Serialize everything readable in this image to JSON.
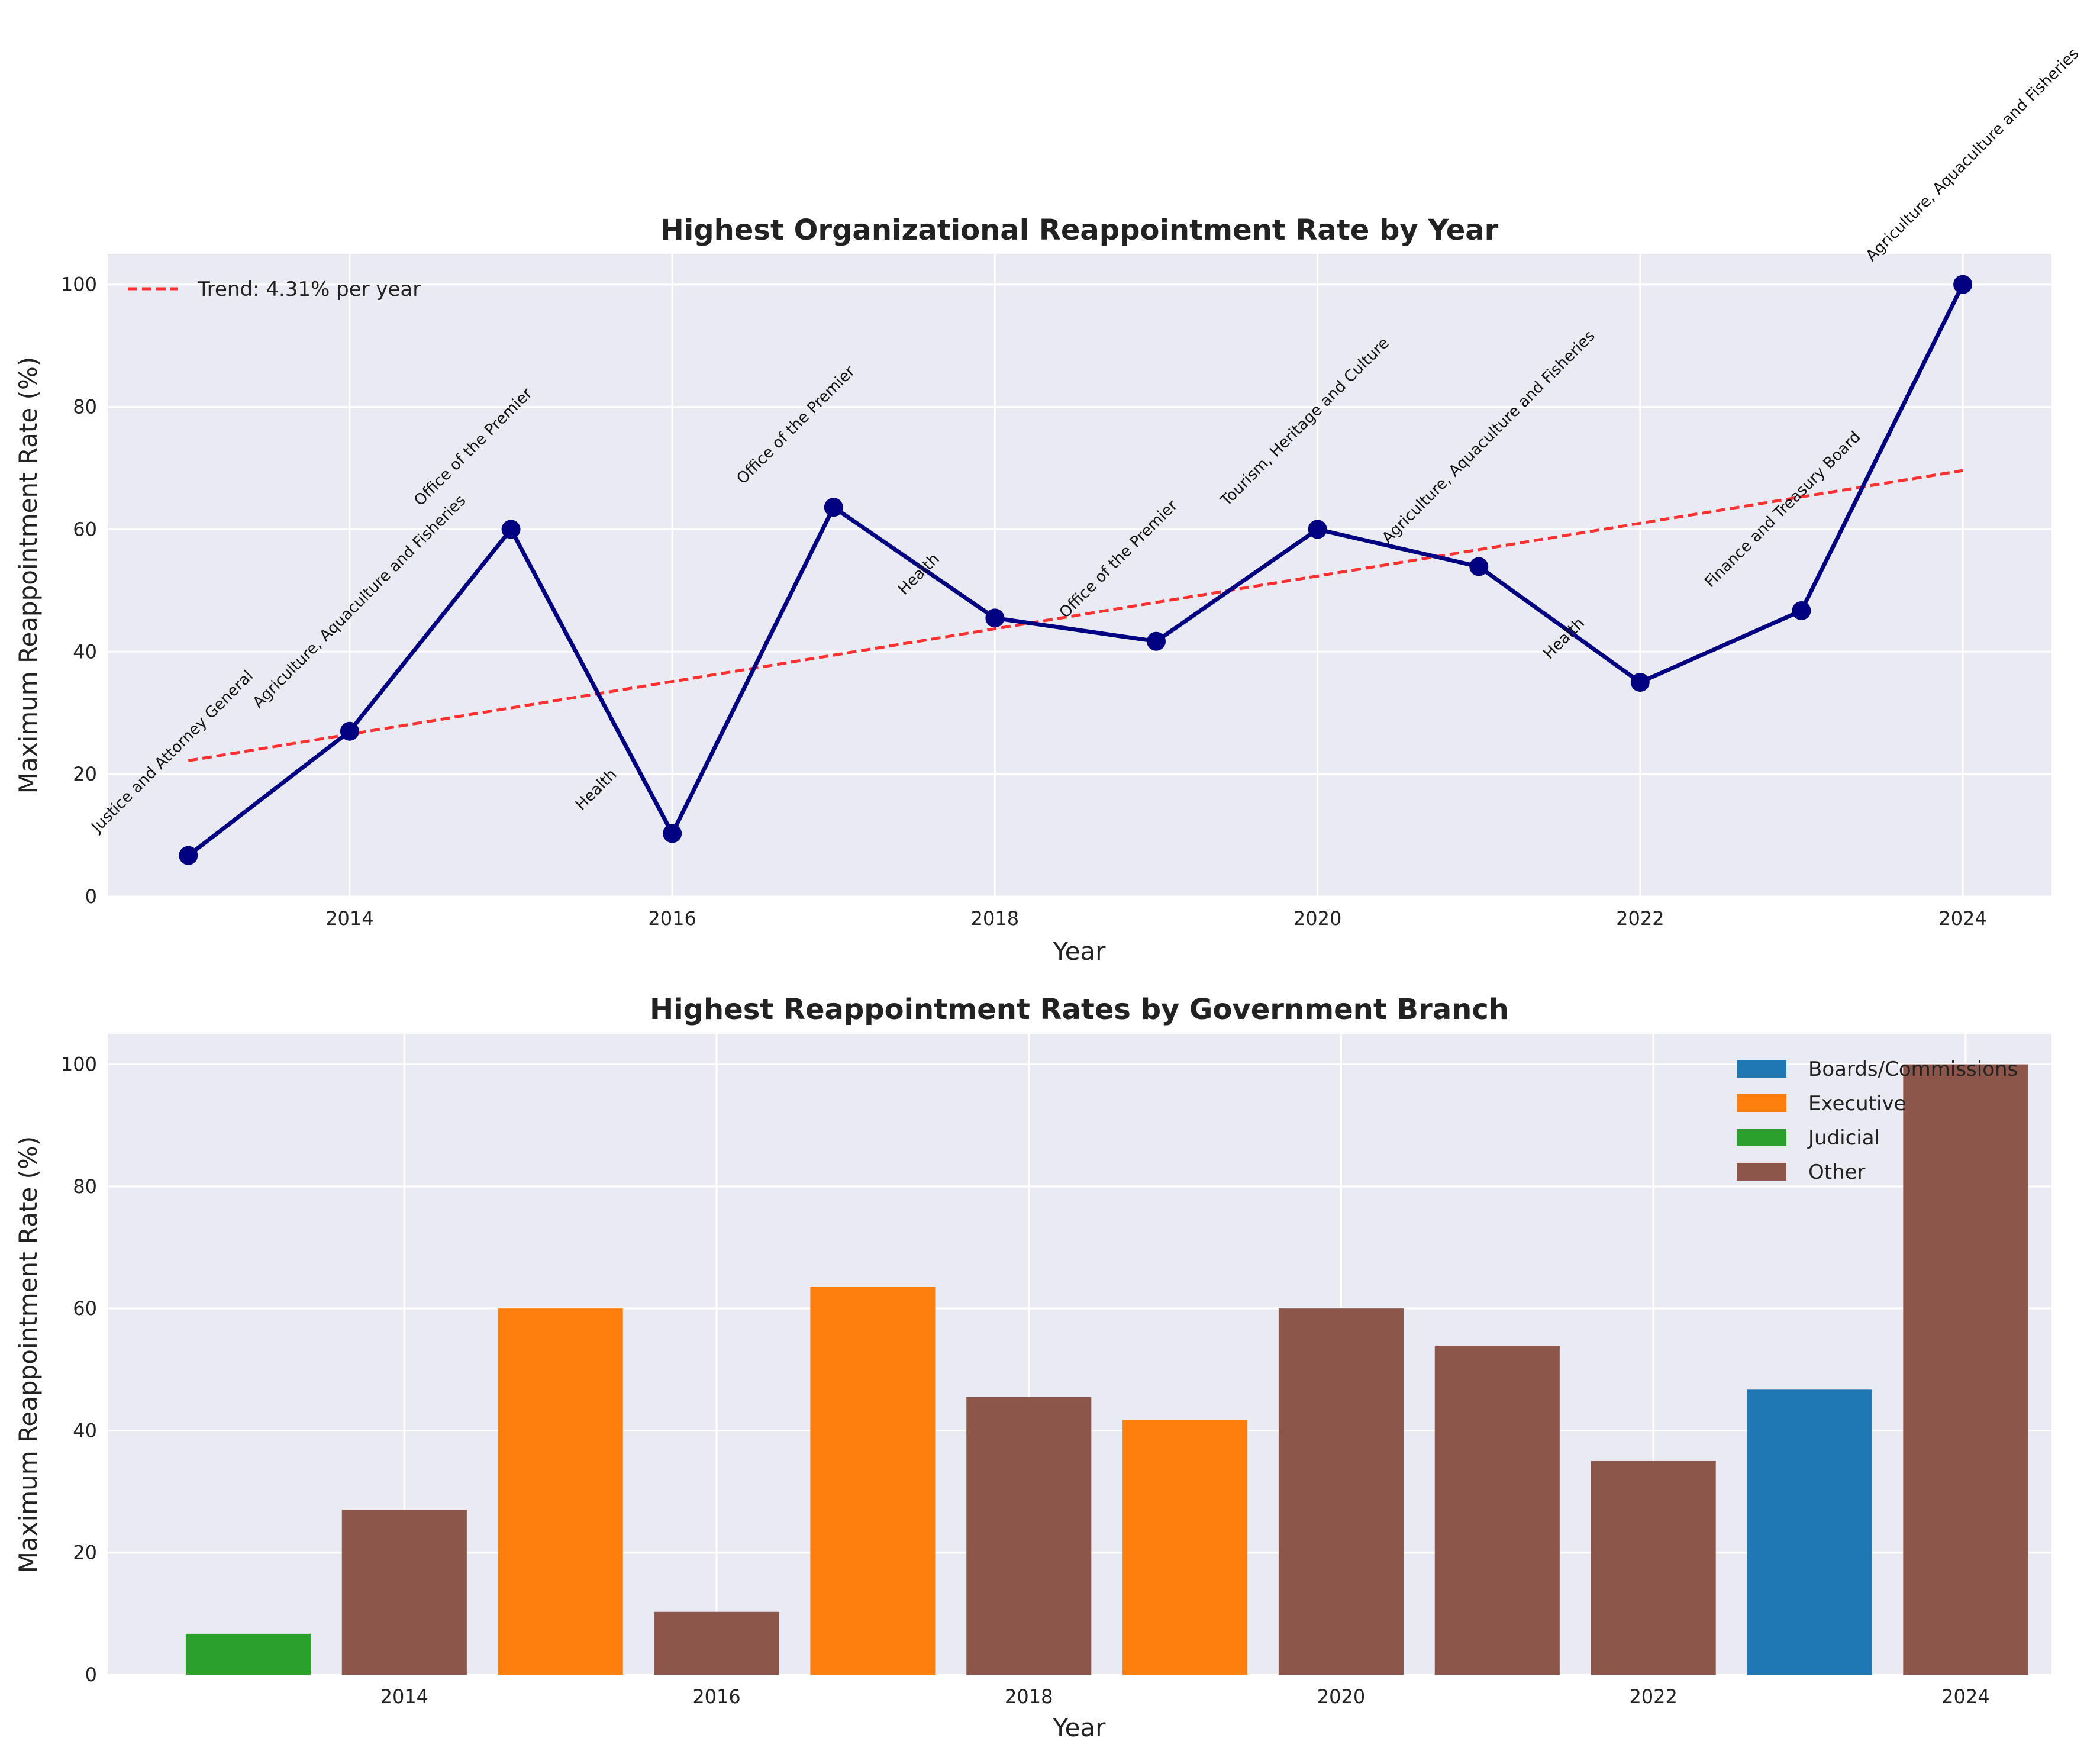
{
  "colors": {
    "panel_bg": "#eaeaf2",
    "grid": "#ffffff",
    "line": "#000080",
    "trend": "#ff3030",
    "Boards/Commissions": "#1f77b4",
    "Executive": "#ff7f0e",
    "Judicial": "#2ca02c",
    "Other": "#8c564b"
  },
  "chart_data": [
    {
      "type": "line",
      "title": "Highest Organizational Reappointment Rate by Year",
      "xlabel": "Year",
      "ylabel": "Maximum Reappointment Rate (%)",
      "xlim": [
        2012.5,
        2024.55
      ],
      "ylim": [
        0,
        105
      ],
      "x_ticks": [
        2014,
        2016,
        2018,
        2020,
        2022,
        2024
      ],
      "y_ticks": [
        0,
        20,
        40,
        60,
        80,
        100
      ],
      "grid": true,
      "x": [
        2013,
        2014,
        2015,
        2016,
        2017,
        2018,
        2019,
        2020,
        2021,
        2022,
        2023,
        2024
      ],
      "values": [
        6.7,
        27.0,
        60.0,
        10.3,
        63.6,
        45.5,
        41.7,
        60.0,
        53.9,
        35.0,
        46.7,
        100.0
      ],
      "annotations": [
        "Justice and Attorney General",
        "Agriculture, Aquaculture and Fisheries",
        "Office of the Premier",
        "Health",
        "Office of the Premier",
        "Health",
        "Office of the Premier",
        "Tourism, Heritage and Culture",
        "Agriculture, Aquaculture and Fisheries",
        "Health",
        "Finance and Treasury Board",
        "Agriculture, Aquaculture and Fisheries"
      ],
      "trend": {
        "label": "Trend: 4.31% per year",
        "slope": 4.31,
        "start": [
          2013,
          22.2
        ],
        "end": [
          2024,
          69.6
        ]
      },
      "legend_position": "top-left"
    },
    {
      "type": "bar",
      "title": "Highest Reappointment Rates by Government Branch",
      "xlabel": "Year",
      "ylabel": "Maximum Reappointment Rate (%)",
      "xlim": [
        2012.1,
        2024.55
      ],
      "ylim": [
        0,
        105
      ],
      "x_ticks": [
        2014,
        2016,
        2018,
        2020,
        2022,
        2024
      ],
      "y_ticks": [
        0,
        20,
        40,
        60,
        80,
        100
      ],
      "grid": true,
      "categories": [
        2013,
        2014,
        2015,
        2016,
        2017,
        2018,
        2019,
        2020,
        2021,
        2022,
        2023,
        2024
      ],
      "values": [
        6.7,
        27.0,
        60.0,
        10.3,
        63.6,
        45.5,
        41.7,
        60.0,
        53.9,
        35.0,
        46.7,
        100.0
      ],
      "branches": [
        "Judicial",
        "Other",
        "Executive",
        "Other",
        "Executive",
        "Other",
        "Executive",
        "Other",
        "Other",
        "Other",
        "Boards/Commissions",
        "Other"
      ],
      "legend": [
        "Boards/Commissions",
        "Executive",
        "Judicial",
        "Other"
      ],
      "legend_position": "top-right"
    }
  ]
}
